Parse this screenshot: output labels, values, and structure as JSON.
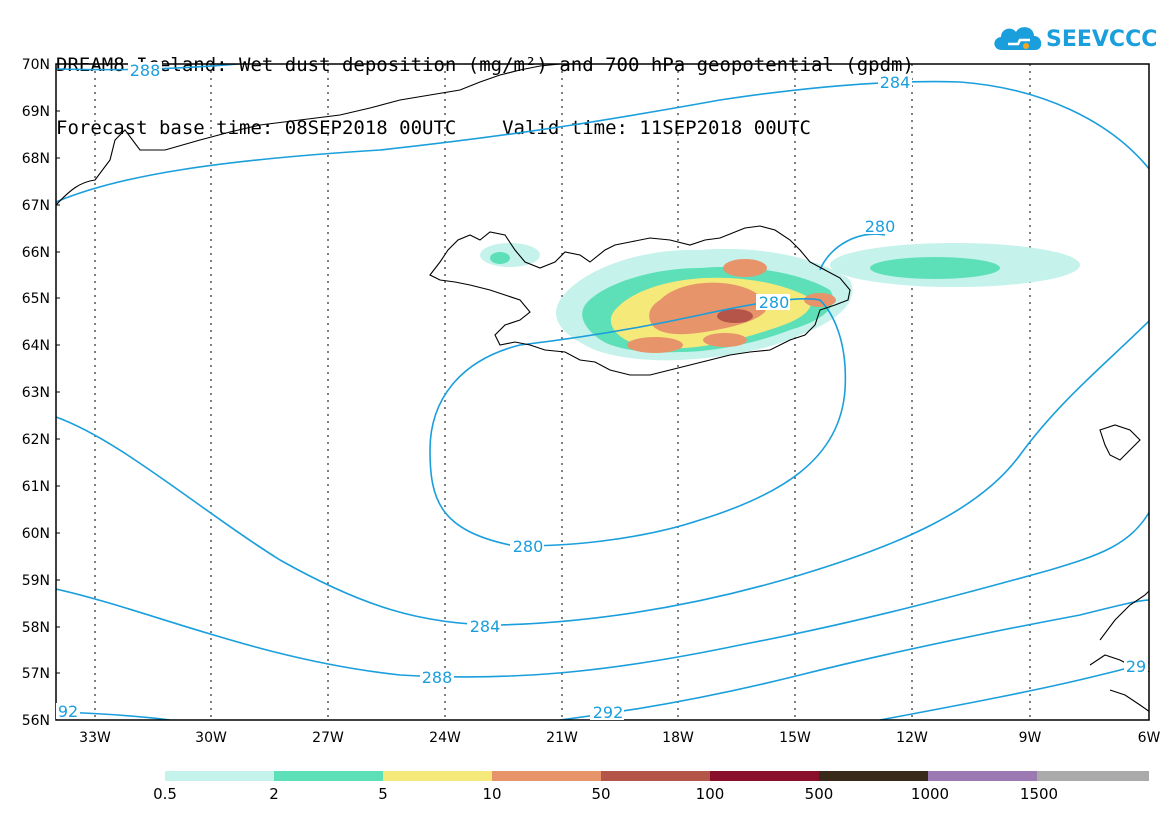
{
  "title": {
    "line1": "DREAM8-Iceland: Wet dust deposition (mg/m²) and 700 hPa geopotential (gpdm)",
    "line2": "Forecast base time: 08SEP2018 00UTC    Valid time: 11SEP2018 00UTC"
  },
  "logo": {
    "text": "SEEVCCC"
  },
  "axes": {
    "lat_labels": [
      "70N",
      "69N",
      "68N",
      "67N",
      "66N",
      "65N",
      "64N",
      "63N",
      "62N",
      "61N",
      "60N",
      "59N",
      "58N",
      "57N",
      "56N"
    ],
    "lon_labels": [
      "33W",
      "30W",
      "27W",
      "24W",
      "21W",
      "18W",
      "15W",
      "12W",
      "9W",
      "6W"
    ]
  },
  "contours": {
    "labels": [
      "288",
      "284",
      "280",
      "280",
      "280",
      "284",
      "288",
      "292",
      "92",
      "29"
    ]
  },
  "colorbar": {
    "colors": [
      "#c6f2ec",
      "#5de0b8",
      "#f5e97a",
      "#e8946a",
      "#b55448",
      "#8a0f2a",
      "#3a2a1a",
      "#9a7ab0",
      "#aaaaaa"
    ],
    "labels": [
      "0.5",
      "2",
      "5",
      "10",
      "50",
      "100",
      "500",
      "1000",
      "1500"
    ]
  },
  "colors": {
    "contour": "#1a9fdc",
    "coast": "#000000"
  }
}
